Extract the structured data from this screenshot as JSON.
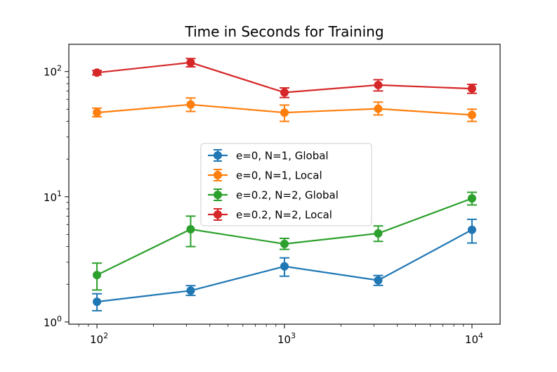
{
  "chart_data": {
    "type": "line",
    "title": "Time in Seconds for Training",
    "xlabel": "",
    "ylabel": "",
    "xscale": "log",
    "yscale": "log",
    "xlim": [
      70.8,
      14125
    ],
    "ylim": [
      0.96,
      165
    ],
    "grid": false,
    "legend": {
      "position": "center"
    },
    "x_ticks": [
      {
        "value": 100,
        "base": "10",
        "exp": "2"
      },
      {
        "value": 1000,
        "base": "10",
        "exp": "3"
      },
      {
        "value": 10000,
        "base": "10",
        "exp": "4"
      }
    ],
    "y_ticks": [
      {
        "value": 1,
        "base": "10",
        "exp": "0"
      },
      {
        "value": 10,
        "base": "10",
        "exp": "1"
      },
      {
        "value": 100,
        "base": "10",
        "exp": "2"
      }
    ],
    "x": [
      100,
      316,
      1000,
      3162,
      10000
    ],
    "series": [
      {
        "name": "e=0, N=1, Global",
        "color": "#1f77b4",
        "values": [
          1.45,
          1.78,
          2.78,
          2.15,
          5.45
        ],
        "err_low": [
          1.23,
          1.63,
          2.32,
          1.96,
          4.27
        ],
        "err_high": [
          1.68,
          1.95,
          3.25,
          2.35,
          6.6
        ]
      },
      {
        "name": "e=0, N=1, Local",
        "color": "#ff7f0e",
        "values": [
          47,
          54.5,
          47,
          50.5,
          45
        ],
        "err_low": [
          43.5,
          48,
          40,
          45,
          40
        ],
        "err_high": [
          51,
          61.5,
          54,
          57,
          50
        ]
      },
      {
        "name": "e=0.2, N=2, Global",
        "color": "#2ca02c",
        "values": [
          2.37,
          5.5,
          4.2,
          5.1,
          9.7
        ],
        "err_low": [
          1.8,
          4.0,
          3.8,
          4.4,
          8.6
        ],
        "err_high": [
          2.95,
          7.0,
          4.65,
          5.85,
          10.85
        ]
      },
      {
        "name": "e=0.2, N=2, Local",
        "color": "#d62728",
        "values": [
          98,
          118,
          68,
          78,
          73
        ],
        "err_low": [
          94,
          109,
          62,
          70,
          67
        ],
        "err_high": [
          102,
          127,
          74,
          86,
          79
        ]
      }
    ]
  }
}
